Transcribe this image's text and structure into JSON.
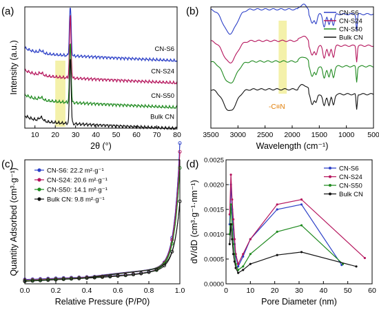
{
  "chart_data": [
    {
      "panel": "(a)",
      "type": "line",
      "xlabel": "2θ (°)",
      "ylabel": "Intensity (a.u.)",
      "xlim": [
        5,
        80
      ],
      "xticks": [
        "10",
        "20",
        "30",
        "40",
        "50",
        "60",
        "70",
        "80"
      ],
      "highlight_band": [
        20,
        25
      ],
      "series": [
        {
          "name": "CN-S6",
          "color": "#2b3fc7",
          "offset": 3.0,
          "peaks": [
            {
              "x": 13.0,
              "h": 0.1
            },
            {
              "x": 27.4,
              "h": 2.4
            }
          ]
        },
        {
          "name": "CN-S24",
          "color": "#b5145c",
          "offset": 2.05,
          "peaks": [
            {
              "x": 13.0,
              "h": 0.1
            },
            {
              "x": 27.4,
              "h": 2.7
            }
          ]
        },
        {
          "name": "CN-S50",
          "color": "#1f8a1f",
          "offset": 1.0,
          "peaks": [
            {
              "x": 13.0,
              "h": 0.1
            },
            {
              "x": 27.4,
              "h": 2.6
            }
          ]
        },
        {
          "name": "Bulk CN",
          "color": "#111111",
          "offset": 0.1,
          "peaks": [
            {
              "x": 13.0,
              "h": 0.15
            },
            {
              "x": 27.4,
              "h": 2.9
            }
          ]
        }
      ]
    },
    {
      "panel": "(b)",
      "type": "line",
      "xlabel": "Wavelength (cm⁻¹)",
      "ylabel": "",
      "xlim": [
        3500,
        500
      ],
      "xticks": [
        "3500",
        "3000",
        "2500",
        "2000",
        "1500",
        "1000",
        "500"
      ],
      "highlight_band": [
        2250,
        2100
      ],
      "annotation": "-C≡N",
      "annotation_color": "#e07b00",
      "series": [
        {
          "name": "CN-S6",
          "color": "#2b3fc7",
          "offset": 0.98
        },
        {
          "name": "CN-S24",
          "color": "#b5145c",
          "offset": 0.72
        },
        {
          "name": "CN-S50",
          "color": "#1f8a1f",
          "offset": 0.55
        },
        {
          "name": "Bulk CN",
          "color": "#111111",
          "offset": 0.32
        }
      ]
    },
    {
      "panel": "(c)",
      "type": "line",
      "xlabel": "Relative Pressure (P/P0)",
      "ylabel": "Quantity Adsorbed (cm³·g⁻¹)",
      "xlim": [
        0.0,
        1.0
      ],
      "xticks": [
        "0.0",
        "0.2",
        "0.4",
        "0.6",
        "0.8",
        "1.0"
      ],
      "series": [
        {
          "name": "CN-S6: 22.2 m²·g⁻¹",
          "color": "#2b3fc7",
          "ymax": 0.97
        },
        {
          "name": "CN-S24: 20.6 m²·g⁻¹",
          "color": "#b5145c",
          "ymax": 0.9
        },
        {
          "name": "CN-S50: 14.1 m²·g⁻¹",
          "color": "#1f8a1f",
          "ymax": 0.77
        },
        {
          "name": "Bulk CN: 9.8 m²·g⁻¹",
          "color": "#111111",
          "ymax": 0.5
        }
      ]
    },
    {
      "panel": "(d)",
      "type": "line",
      "xlabel": "Pore Diameter (nm)",
      "ylabel": "dV/dD (cm³·g⁻¹·nm⁻¹)",
      "xlim": [
        0,
        60
      ],
      "ylim": [
        0,
        0.0025
      ],
      "xticks": [
        "0",
        "10",
        "20",
        "30",
        "40",
        "50",
        "60"
      ],
      "yticks": [
        "0.0000",
        "0.0005",
        "0.0010",
        "0.0015",
        "0.0020",
        "0.0025"
      ],
      "series": [
        {
          "name": "CN-S6",
          "color": "#2b3fc7",
          "x": [
            1.5,
            2,
            2.5,
            3,
            3.5,
            4,
            5,
            7,
            10,
            21,
            31,
            47.5
          ],
          "y": [
            0.0012,
            0.002,
            0.0015,
            0.0011,
            0.0008,
            0.00055,
            0.00035,
            0.00055,
            0.0009,
            0.0015,
            0.0016,
            0.00038
          ]
        },
        {
          "name": "CN-S24",
          "color": "#b5145c",
          "x": [
            1.5,
            2,
            2.5,
            3,
            3.5,
            4,
            5,
            7,
            10,
            21,
            31,
            57
          ],
          "y": [
            0.0014,
            0.0022,
            0.0017,
            0.0013,
            0.0009,
            0.0006,
            0.0004,
            0.0006,
            0.0009,
            0.0016,
            0.0017,
            0.00052
          ]
        },
        {
          "name": "CN-S50",
          "color": "#1f8a1f",
          "x": [
            1.5,
            2,
            2.5,
            3,
            3.5,
            4,
            5,
            7,
            10,
            21,
            31,
            48
          ],
          "y": [
            0.001,
            0.0016,
            0.0012,
            0.0008,
            0.0006,
            0.0004,
            0.00028,
            0.00035,
            0.0006,
            0.00105,
            0.00118,
            0.0004
          ]
        },
        {
          "name": "Bulk CN",
          "color": "#111111",
          "x": [
            1.5,
            2,
            2.5,
            3,
            3.5,
            4,
            5,
            7,
            10,
            21,
            31,
            53.5
          ],
          "y": [
            0.0008,
            0.0012,
            0.0009,
            0.0006,
            0.00045,
            0.00032,
            0.00022,
            0.00028,
            0.0004,
            0.00058,
            0.00064,
            0.00035
          ]
        }
      ]
    }
  ]
}
